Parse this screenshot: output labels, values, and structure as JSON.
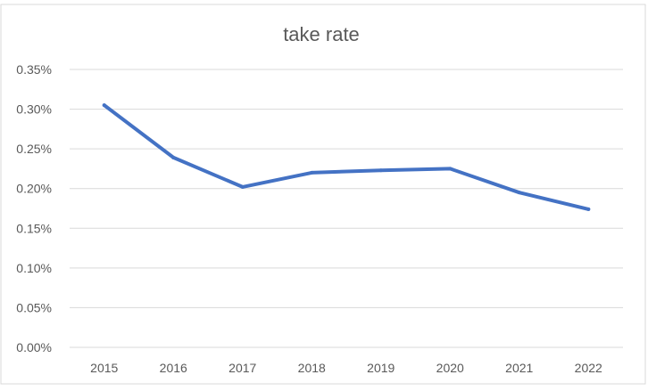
{
  "chart_data": {
    "type": "line",
    "title": "take rate",
    "xlabel": "",
    "ylabel": "",
    "categories": [
      "2015",
      "2016",
      "2017",
      "2018",
      "2019",
      "2020",
      "2021",
      "2022"
    ],
    "series": [
      {
        "values": [
          0.305,
          0.239,
          0.202,
          0.22,
          0.223,
          0.225,
          0.195,
          0.174
        ]
      }
    ],
    "ylim": [
      0,
      0.35
    ],
    "yticks": [
      0,
      0.05,
      0.1,
      0.15,
      0.2,
      0.25,
      0.3,
      0.35
    ],
    "ytick_labels": [
      "0.00%",
      "0.05%",
      "0.10%",
      "0.15%",
      "0.20%",
      "0.25%",
      "0.30%",
      "0.35%"
    ],
    "grid": true,
    "legend": "none",
    "colors": {
      "line": "#4472c4",
      "grid": "#d9d9d9",
      "text": "#595959",
      "border": "#d9d9d9"
    }
  }
}
